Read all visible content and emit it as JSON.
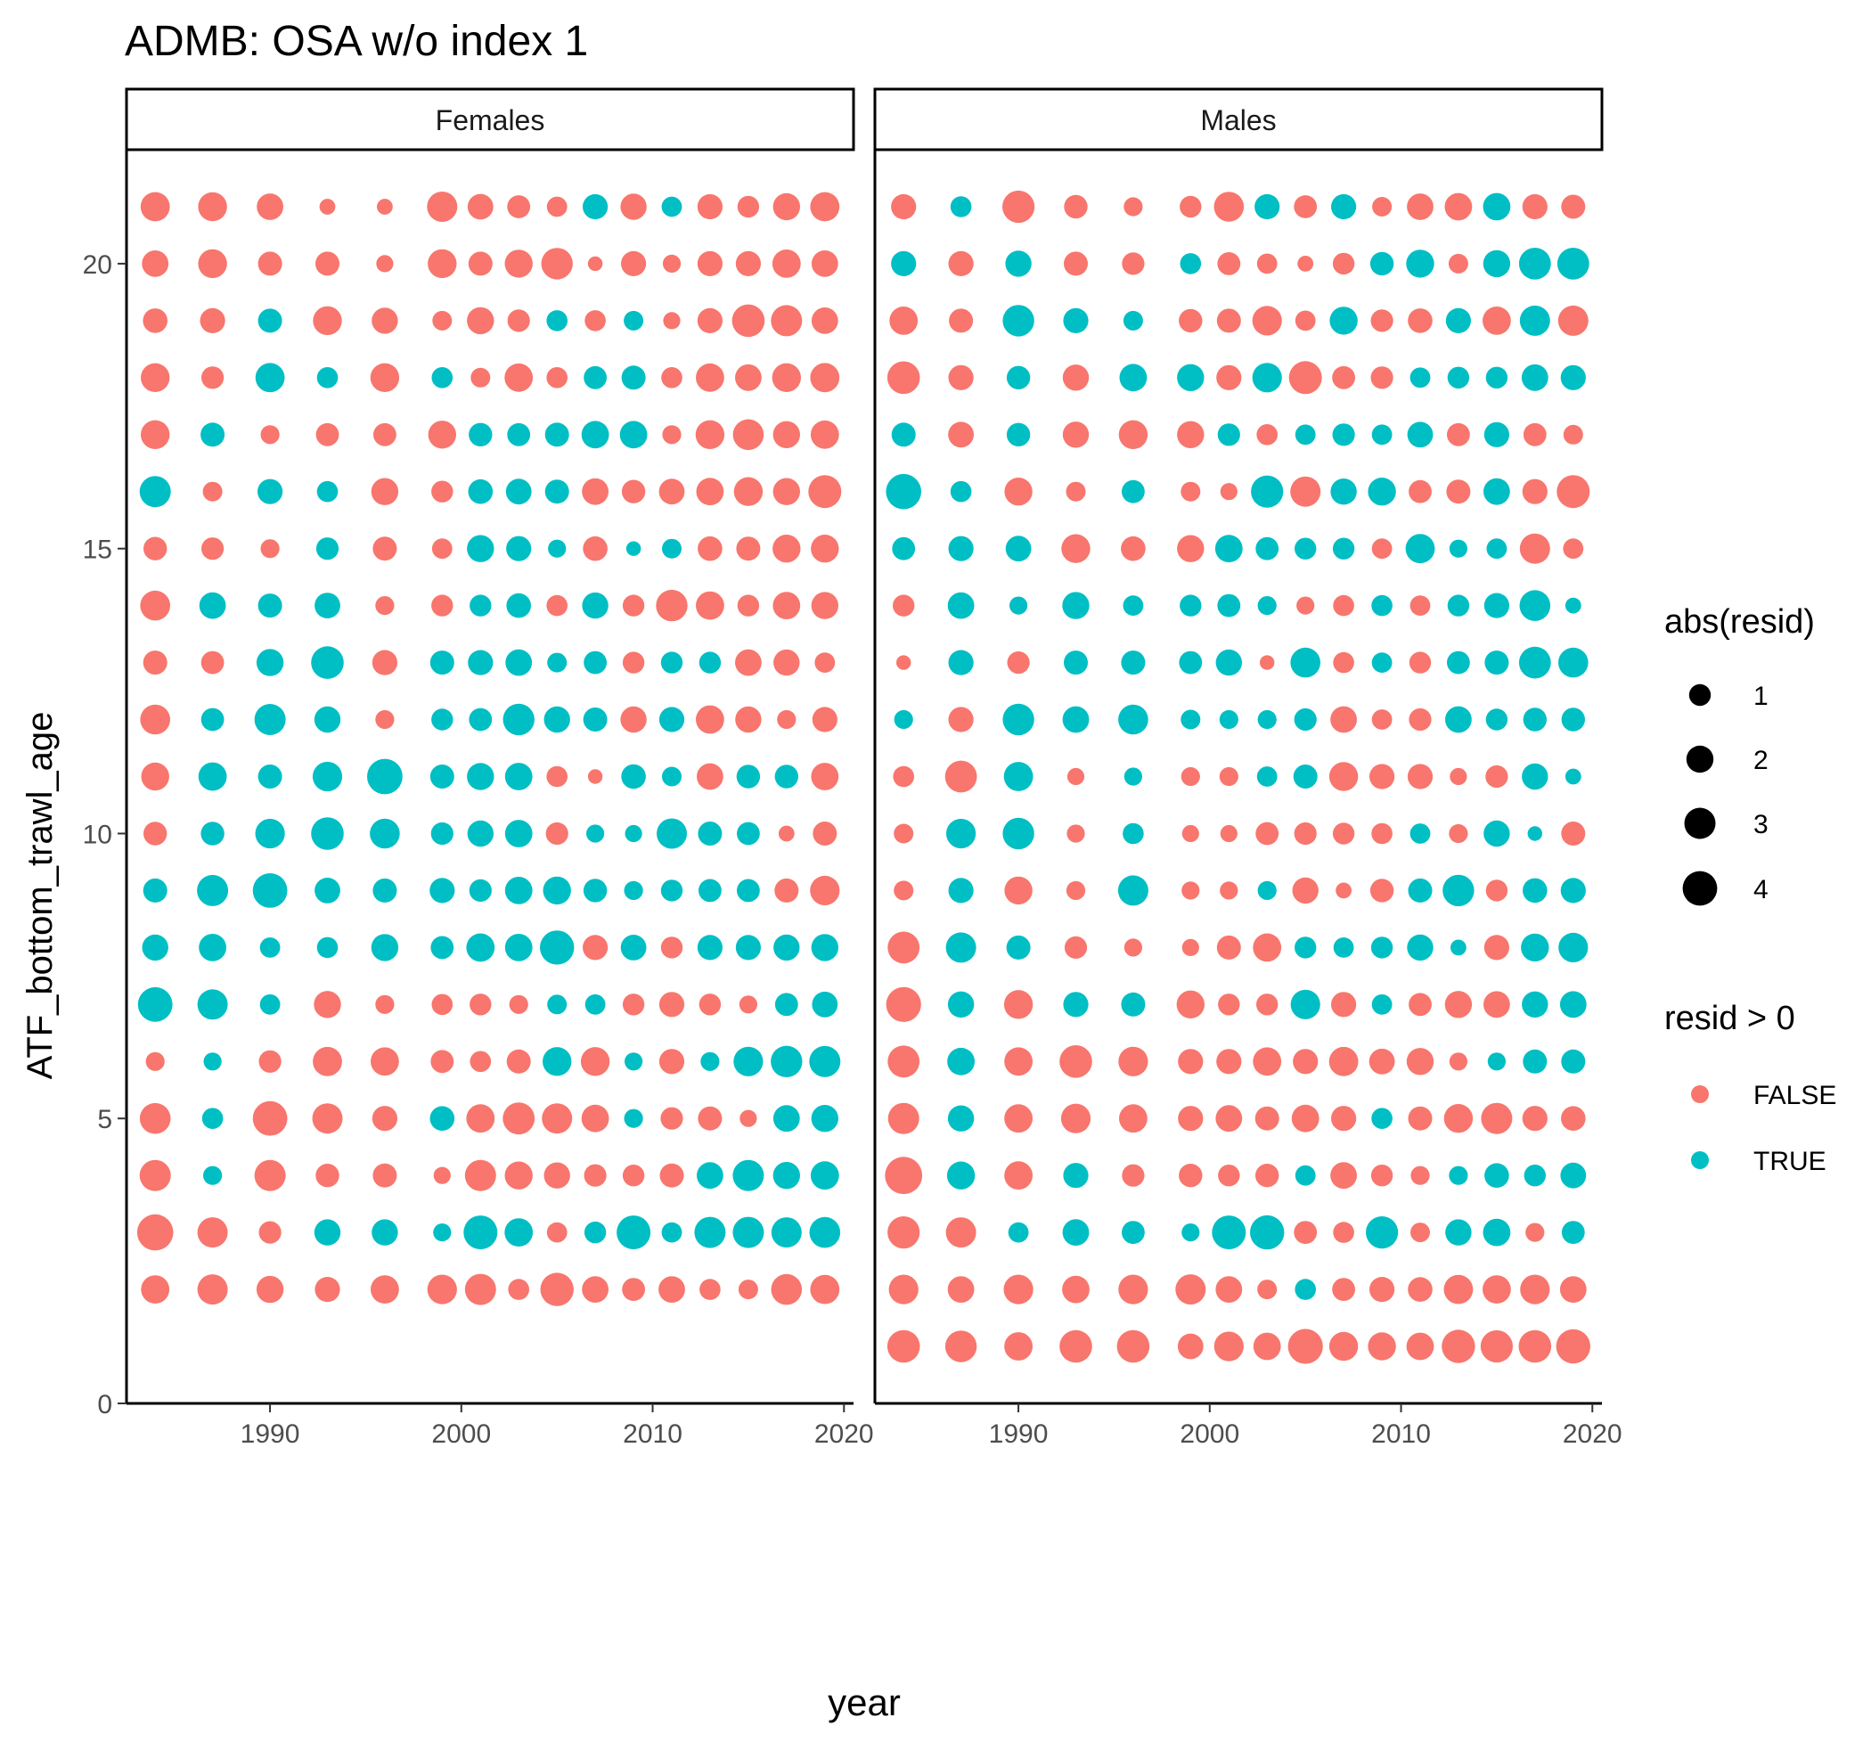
{
  "chart_data": {
    "type": "scatter",
    "title": "ADMB: OSA w/o index 1",
    "xlabel": "year",
    "ylabel": "ATF_bottom_trawl_age",
    "xlim": [
      1982.5,
      2020.5
    ],
    "ylim": [
      0,
      22
    ],
    "xticks": [
      1990,
      2000,
      2010,
      2020
    ],
    "yticks": [
      0,
      5,
      10,
      15,
      20
    ],
    "grid": false,
    "years": [
      1984,
      1987,
      1990,
      1993,
      1996,
      1999,
      2001,
      2003,
      2005,
      2007,
      2009,
      2011,
      2013,
      2015,
      2017,
      2019
    ],
    "colors": {
      "FALSE": "#F8766D",
      "TRUE": "#00BFC4"
    },
    "legend": {
      "placement": "right",
      "size_title": "abs(resid)",
      "size_labels": [
        "1",
        "2",
        "3",
        "4"
      ],
      "size_values": [
        1,
        2,
        3,
        4
      ],
      "color_title": "resid > 0",
      "color_labels": [
        "FALSE",
        "TRUE"
      ]
    },
    "panels": [
      {
        "name": "Females",
        "ages": [
          21,
          20,
          19,
          18,
          17,
          16,
          15,
          14,
          13,
          12,
          11,
          10,
          9,
          8,
          7,
          6,
          5,
          4,
          3,
          2
        ],
        "resid": [
          [
            -2.5,
            -2.4,
            -1.9,
            -0.3,
            -0.3,
            -2.8,
            -1.7,
            -1.2,
            -0.8,
            1.6,
            -1.8,
            0.8,
            -1.6,
            -1.0,
            -2.0,
            -2.5
          ],
          [
            -1.9,
            -2.4,
            -1.4,
            -1.4,
            -0.4,
            -2.4,
            -1.4,
            -2.2,
            -3.1,
            -0.2,
            -1.6,
            -0.5,
            -1.6,
            -1.6,
            -2.3,
            -1.9
          ],
          [
            -1.5,
            -1.6,
            1.4,
            -2.4,
            -1.8,
            -0.7,
            -2.0,
            -1.1,
            0.9,
            -0.9,
            0.7,
            -0.4,
            -1.6,
            -3.4,
            -3.0,
            -1.9
          ],
          [
            -2.4,
            -1.1,
            2.5,
            0.9,
            -2.4,
            0.9,
            -0.7,
            -2.3,
            -0.9,
            1.2,
            1.4,
            -0.9,
            -2.3,
            -1.9,
            -2.4,
            -2.5
          ],
          [
            -2.4,
            1.4,
            -0.6,
            -1.2,
            -1.2,
            -2.2,
            1.3,
            1.2,
            1.4,
            2.1,
            2.1,
            -0.6,
            -2.4,
            -2.9,
            -2.0,
            -2.3
          ],
          [
            3.0,
            -0.7,
            1.6,
            0.9,
            -2.0,
            -1.0,
            1.5,
            1.7,
            1.4,
            -1.9,
            -1.3,
            -1.7,
            -2.1,
            -2.4,
            -2.0,
            -3.5
          ],
          [
            -1.3,
            -1.1,
            -0.6,
            1.1,
            -1.4,
            -0.8,
            2.0,
            1.6,
            0.5,
            -1.5,
            0.2,
            0.7,
            -1.5,
            -1.4,
            -2.2,
            -2.2
          ],
          [
            -2.7,
            1.9,
            1.4,
            1.7,
            -0.6,
            -1.0,
            1.0,
            1.5,
            -0.9,
            1.8,
            -1.0,
            -3.1,
            -2.3,
            -1.0,
            -2.1,
            -2.0
          ],
          [
            -1.4,
            -1.2,
            2.0,
            3.4,
            -1.6,
            1.4,
            1.6,
            1.9,
            0.7,
            1.2,
            -1.0,
            1.0,
            1.0,
            -1.9,
            -1.8,
            -0.8
          ],
          [
            -2.7,
            1.2,
            3.0,
            1.8,
            -0.6,
            1.0,
            1.2,
            3.1,
            1.8,
            1.4,
            -1.8,
            1.6,
            -2.3,
            -1.8,
            -0.6,
            -1.6
          ],
          [
            -2.2,
            2.3,
            1.4,
            2.6,
            4.3,
            1.4,
            2.0,
            2.1,
            -0.9,
            -0.2,
            1.5,
            0.7,
            -1.9,
            1.3,
            1.3,
            -2.1
          ],
          [
            -1.3,
            1.3,
            2.6,
            3.4,
            2.7,
            1.1,
            1.8,
            2.1,
            -1.1,
            0.5,
            0.4,
            2.8,
            1.4,
            1.2,
            -0.3,
            -1.4
          ],
          [
            1.4,
            3.0,
            4.0,
            1.7,
            1.4,
            1.6,
            1.1,
            2.1,
            2.2,
            1.3,
            0.6,
            1.0,
            1.2,
            1.2,
            -1.4,
            -2.6
          ],
          [
            1.8,
            2.1,
            0.8,
            0.9,
            2.0,
            1.2,
            2.3,
            2.1,
            3.9,
            -1.6,
            1.7,
            -1.0,
            1.6,
            1.6,
            1.8,
            2.0
          ],
          [
            4.0,
            2.8,
            0.8,
            -2.0,
            -0.6,
            -0.9,
            -1.0,
            -0.6,
            0.7,
            0.8,
            -1.0,
            -1.6,
            -1.0,
            -0.5,
            1.2,
            1.7
          ],
          [
            -0.6,
            0.5,
            -1.1,
            -2.5,
            -2.3,
            -1.2,
            -0.9,
            -1.4,
            2.4,
            -2.4,
            0.5,
            -1.6,
            0.6,
            2.6,
            3.1,
            3.0
          ],
          [
            -2.9,
            0.9,
            -4.0,
            -2.8,
            -1.6,
            1.5,
            -2.3,
            -3.2,
            -2.8,
            -2.1,
            0.6,
            -1.1,
            -1.4,
            -0.4,
            1.9,
            2.0
          ],
          [
            -3.0,
            0.6,
            -3.0,
            -1.3,
            -1.4,
            -0.4,
            -3.0,
            -2.2,
            -1.8,
            -1.1,
            -1.0,
            -1.4,
            1.9,
            3.0,
            2.0,
            2.3
          ],
          [
            -4.5,
            -2.8,
            -1.1,
            1.8,
            1.8,
            0.5,
            3.8,
            2.3,
            -0.8,
            1.0,
            3.8,
            0.8,
            3.0,
            3.0,
            2.8,
            2.9
          ],
          [
            -2.3,
            -2.8,
            -2.0,
            -1.6,
            -2.3,
            -2.6,
            -3.0,
            -0.9,
            -3.6,
            -1.9,
            -1.2,
            -1.9,
            -0.9,
            -0.7,
            -2.9,
            -2.5
          ]
        ]
      },
      {
        "name": "Males",
        "ages": [
          21,
          20,
          19,
          18,
          17,
          16,
          15,
          14,
          13,
          12,
          11,
          10,
          9,
          8,
          7,
          6,
          5,
          4,
          3,
          2,
          1
        ],
        "resid": [
          [
            -1.6,
            0.9,
            -3.3,
            -1.3,
            -0.6,
            -1.0,
            -2.7,
            1.6,
            -1.2,
            1.6,
            -0.7,
            -1.9,
            -2.1,
            2.1,
            -1.6,
            -1.4
          ],
          [
            1.6,
            -1.6,
            1.8,
            -1.4,
            -1.1,
            0.9,
            -1.2,
            -0.8,
            -0.3,
            -1.0,
            1.3,
            2.2,
            -0.7,
            2.0,
            3.2,
            3.2
          ],
          [
            -2.3,
            -1.4,
            3.1,
            1.6,
            0.7,
            -1.3,
            -1.4,
            -2.6,
            -0.8,
            2.2,
            -1.1,
            -1.5,
            1.6,
            -2.3,
            2.8,
            -2.8
          ],
          [
            -3.4,
            -1.6,
            1.3,
            -1.8,
            2.1,
            2.0,
            -1.6,
            2.6,
            -3.5,
            -1.2,
            -1.1,
            0.8,
            1.0,
            1.0,
            1.9,
            1.6
          ],
          [
            1.4,
            -1.7,
            1.3,
            -1.8,
            -2.4,
            -2.0,
            1.1,
            -0.9,
            0.8,
            1.1,
            0.8,
            1.7,
            -1.2,
            1.6,
            -1.2,
            -0.7
          ],
          [
            4.2,
            0.9,
            -2.2,
            -0.7,
            1.2,
            -0.7,
            -0.4,
            3.3,
            -2.8,
            1.8,
            2.2,
            -1.2,
            -1.4,
            1.9,
            -1.6,
            -3.5
          ],
          [
            1.2,
            1.6,
            1.7,
            -2.4,
            -1.5,
            -2.0,
            2.1,
            1.2,
            1.0,
            1.0,
            -0.8,
            2.5,
            0.5,
            0.8,
            -2.8,
            -0.8
          ],
          [
            -1.0,
            1.9,
            0.5,
            2.0,
            0.8,
            1.0,
            1.2,
            0.6,
            -0.5,
            -0.9,
            0.9,
            -0.8,
            1.0,
            1.6,
            2.9,
            0.3
          ],
          [
            -0.2,
            1.6,
            -1.1,
            1.4,
            1.4,
            1.2,
            1.8,
            -0.2,
            2.7,
            -0.9,
            0.8,
            -1.0,
            1.2,
            1.4,
            3.2,
            2.7
          ],
          [
            0.6,
            -1.6,
            3.1,
            1.9,
            2.7,
            0.7,
            0.6,
            0.6,
            1.1,
            -1.9,
            -0.8,
            -1.1,
            1.9,
            1.0,
            1.3,
            1.3
          ],
          [
            -0.9,
            -3.2,
            2.5,
            -0.4,
            0.5,
            -0.6,
            -0.6,
            0.8,
            1.4,
            -2.4,
            -1.6,
            -1.6,
            -0.4,
            -1.1,
            1.8,
            0.3
          ],
          [
            -0.7,
            2.6,
            3.1,
            -0.5,
            0.9,
            -0.4,
            -0.4,
            -1.2,
            -1.1,
            -1.0,
            -0.9,
            0.8,
            -0.6,
            1.8,
            0.2,
            -1.4
          ],
          [
            -0.7,
            1.6,
            -2.2,
            -0.6,
            2.8,
            -0.5,
            -0.5,
            0.6,
            -1.8,
            -0.3,
            -1.3,
            1.4,
            3.1,
            -1.0,
            1.5,
            1.6
          ],
          [
            -3.2,
            2.8,
            1.4,
            -1.1,
            -0.5,
            -0.4,
            -1.4,
            -2.3,
            1.0,
            0.8,
            1.0,
            1.8,
            0.3,
            -1.6,
            2.2,
            2.6
          ],
          [
            -4.1,
            1.8,
            -2.4,
            1.6,
            1.4,
            -2.2,
            -1.0,
            -1.0,
            2.6,
            -1.6,
            0.8,
            -1.2,
            -2.0,
            -1.9,
            1.8,
            1.9
          ],
          [
            -3.2,
            2.1,
            -2.3,
            -3.4,
            -2.6,
            -1.6,
            -1.6,
            -2.3,
            -1.6,
            -2.5,
            -1.7,
            -2.0,
            -0.5,
            0.5,
            1.4,
            1.4
          ],
          [
            -3.0,
            1.8,
            -2.3,
            -2.6,
            -2.3,
            -1.6,
            -1.9,
            -1.4,
            -2.1,
            -1.6,
            0.9,
            -1.4,
            -2.4,
            -3.0,
            -1.6,
            -1.5
          ],
          [
            -4.9,
            2.2,
            -2.3,
            1.6,
            -1.1,
            -1.3,
            -1.0,
            -1.3,
            0.8,
            -1.9,
            -1.0,
            -0.6,
            0.6,
            1.5,
            1.0,
            1.7
          ],
          [
            -3.3,
            -2.8,
            0.8,
            1.9,
            1.2,
            0.5,
            3.8,
            3.9,
            -1.2,
            -0.9,
            3.3,
            -0.7,
            1.8,
            2.1,
            -0.6,
            1.2
          ],
          [
            -2.6,
            -1.9,
            -2.6,
            -2.1,
            -2.6,
            -2.8,
            -1.9,
            -0.7,
            0.9,
            -1.2,
            -1.6,
            -1.5,
            -2.5,
            -2.3,
            -2.6,
            -1.9
          ],
          [
            -3.4,
            -3.1,
            -2.3,
            -3.4,
            -3.4,
            -1.7,
            -2.6,
            -2.1,
            -4.1,
            -2.4,
            -2.2,
            -2.1,
            -3.6,
            -3.3,
            -3.4,
            -3.9
          ]
        ]
      }
    ]
  }
}
